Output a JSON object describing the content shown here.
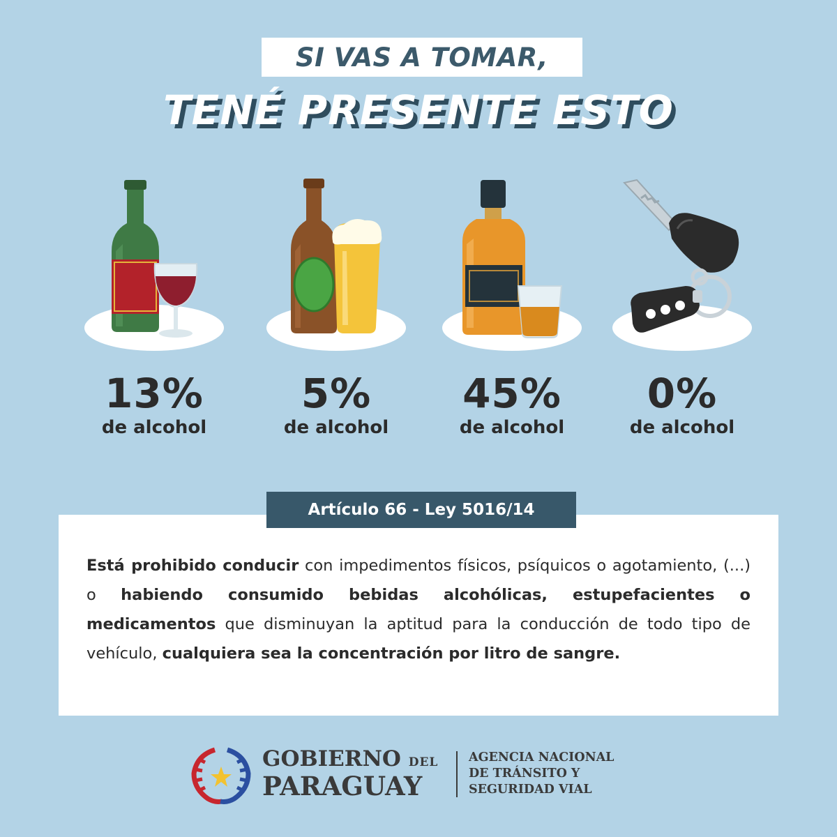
{
  "headline": {
    "line1": "SI VAS A TOMAR,",
    "line2": "TENÉ PRESENTE ESTO"
  },
  "drinks": [
    {
      "icon": "wine-bottle-glass-icon",
      "percent": "13%",
      "label": "de alcohol"
    },
    {
      "icon": "beer-bottle-glass-icon",
      "percent": "5%",
      "label": "de alcohol"
    },
    {
      "icon": "whisky-bottle-glass-icon",
      "percent": "45%",
      "label": "de alcohol"
    },
    {
      "icon": "car-key-icon",
      "percent": "0%",
      "label": "de alcohol"
    }
  ],
  "article": {
    "badge": "Artículo 66 - Ley 5016/14",
    "segments": [
      {
        "text": "Está prohibido conducir",
        "bold": true
      },
      {
        "text": " con impedimentos físicos, psíquicos o agotamiento, (...) o ",
        "bold": false
      },
      {
        "text": "habiendo consumido bebidas alcohólicas, es­tupefacientes o medicamentos",
        "bold": true
      },
      {
        "text": " que disminuyan la aptitud para la conducción de todo tipo de vehículo, ",
        "bold": false
      },
      {
        "text": "cualquiera sea la concentra­ción por litro de sangre.",
        "bold": true
      }
    ]
  },
  "footer": {
    "gov_name": "GOBIERNO",
    "gov_del": "DEL",
    "gov_country": "PARAGUAY",
    "agency_line1": "AGENCIA NACIONAL",
    "agency_line2": "DE TRÁNSITO Y",
    "agency_line3": "SEGURIDAD VIAL"
  },
  "colors": {
    "background": "#b3d3e6",
    "dark_teal": "#38586a",
    "text": "#2b2b2b",
    "white": "#ffffff"
  }
}
